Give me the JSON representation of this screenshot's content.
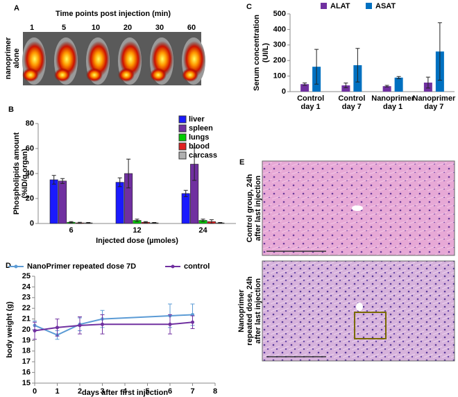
{
  "panel_a": {
    "label": "A",
    "title": "Time points post injection (min)",
    "time_points": [
      "1",
      "5",
      "10",
      "20",
      "30",
      "60"
    ],
    "row_label": [
      "nanoprimer",
      "alone"
    ]
  },
  "chart_data": [
    {
      "type": "bar",
      "panel_label": "B",
      "ylabel": [
        "Phospholipids amount",
        "(%ID/g organ)"
      ],
      "xlabel": "Injected dose (µmoles)",
      "categories": [
        "6",
        "12",
        "24"
      ],
      "ylim": [
        0,
        80
      ],
      "yticks": [
        0,
        20,
        40,
        60,
        80
      ],
      "legend": "right",
      "series": [
        {
          "name": "liver",
          "color": "#1a1aff",
          "values": [
            35,
            33,
            24
          ],
          "errors": [
            3.5,
            3.5,
            2.5
          ]
        },
        {
          "name": "spleen",
          "color": "#7030a0",
          "values": [
            34,
            40,
            47.5
          ],
          "errors": [
            2,
            11.5,
            13
          ]
        },
        {
          "name": "lungs",
          "color": "#00cc00",
          "values": [
            1,
            2.5,
            2.5
          ],
          "errors": [
            0.5,
            1,
            1
          ]
        },
        {
          "name": "blood",
          "color": "#e02020",
          "values": [
            0.5,
            1,
            1.5
          ],
          "errors": [
            0.5,
            0.5,
            1.5
          ]
        },
        {
          "name": "carcass",
          "color": "#b0b0b0",
          "values": [
            0.5,
            0.5,
            0.5
          ],
          "errors": [
            0.3,
            0.3,
            0.3
          ]
        }
      ]
    },
    {
      "type": "bar",
      "panel_label": "C",
      "ylabel": [
        "Serum concentration",
        "(UI/L)"
      ],
      "categories": [
        [
          "Control",
          "day 1"
        ],
        [
          "Control",
          "day 7"
        ],
        [
          "Nanoprimer",
          "day 1"
        ],
        [
          "Nanoprimer",
          "day 7"
        ]
      ],
      "ylim": [
        0,
        500
      ],
      "yticks": [
        0,
        100,
        200,
        300,
        400,
        500
      ],
      "legend": "top",
      "series": [
        {
          "name": "ALAT",
          "color": "#7030a0",
          "values": [
            48,
            40,
            35,
            58
          ],
          "errors": [
            8,
            15,
            5,
            35
          ]
        },
        {
          "name": "ASAT",
          "color": "#0070c0",
          "values": [
            160,
            170,
            90,
            258
          ],
          "errors": [
            112,
            108,
            7,
            185
          ]
        }
      ]
    },
    {
      "type": "line",
      "panel_label": "D",
      "ylabel": "body weight (g)",
      "xlabel": "days after first injection",
      "x": [
        0,
        1,
        2,
        3,
        6,
        7
      ],
      "xlim": [
        0,
        8
      ],
      "xticks": [
        0,
        1,
        2,
        3,
        4,
        5,
        6,
        7,
        8
      ],
      "ylim": [
        15,
        25
      ],
      "yticks": [
        15,
        16,
        17,
        18,
        19,
        20,
        21,
        22,
        23,
        24,
        25
      ],
      "legend": "top",
      "series": [
        {
          "name": "NanoPrimer repeated dose 7D",
          "color": "#5b9bd5",
          "values": [
            20.4,
            19.5,
            20.5,
            21.0,
            21.3,
            21.4
          ],
          "errors": [
            0.4,
            0.4,
            0.6,
            0.8,
            1.1,
            1.0
          ]
        },
        {
          "name": "control",
          "color": "#7030a0",
          "values": [
            19.9,
            20.2,
            20.4,
            20.5,
            20.5,
            20.7
          ],
          "errors": [
            0.8,
            0.8,
            0.8,
            0.9,
            0.9,
            0.6
          ]
        }
      ]
    }
  ],
  "panel_e": {
    "label": "E",
    "images": [
      {
        "label": [
          "Control group, 24h",
          "after last injection"
        ]
      },
      {
        "label": [
          "Nanoprimer",
          "repeated dose, 24h",
          "after last injection"
        ]
      }
    ]
  }
}
